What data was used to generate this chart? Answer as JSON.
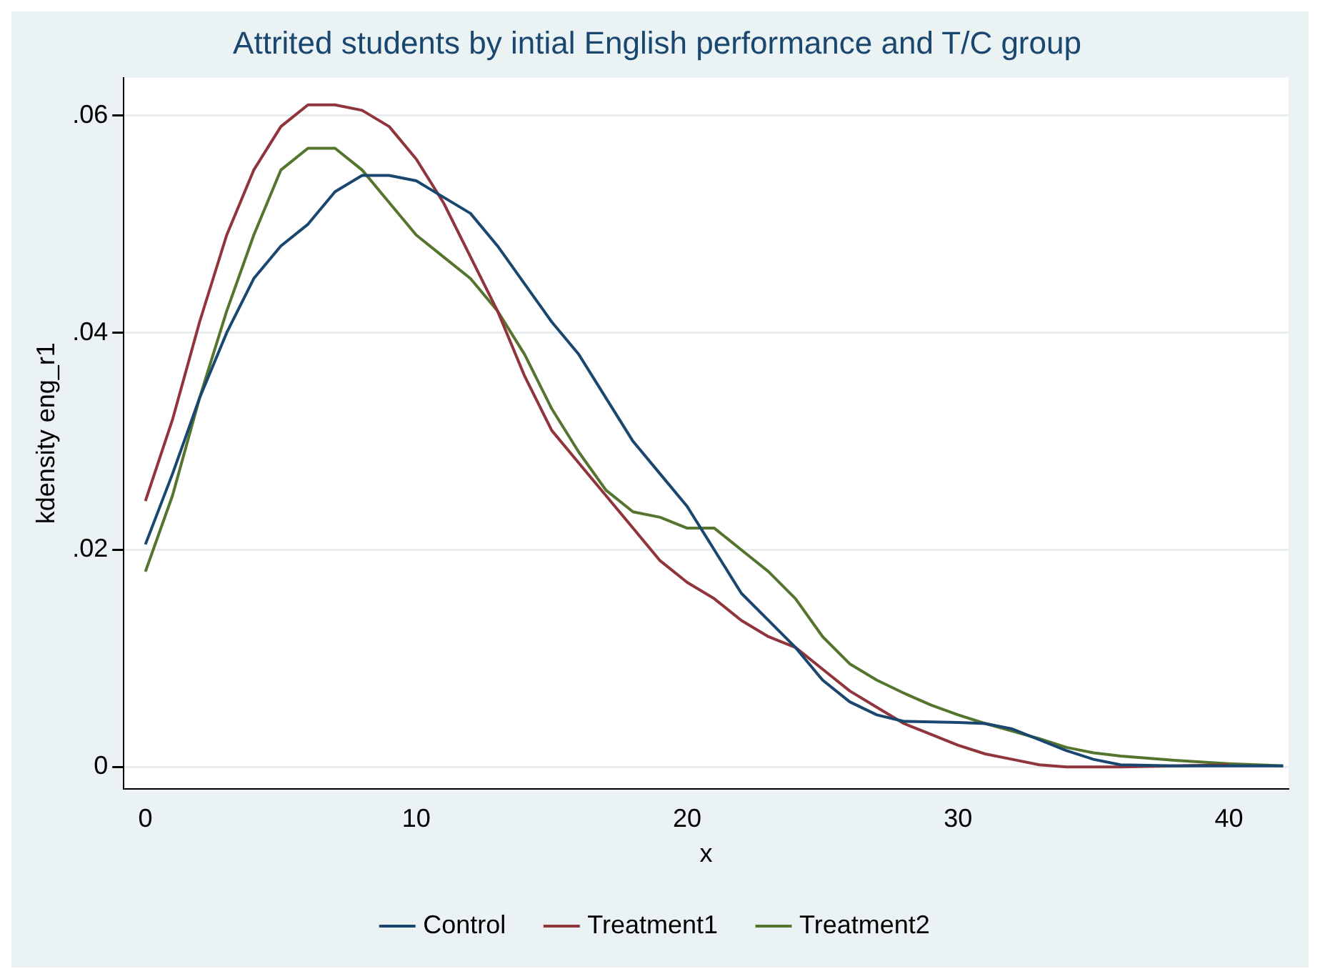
{
  "chart_data": {
    "type": "line",
    "title": "Attrited students by intial English performance and T/C group",
    "xlabel": "x",
    "ylabel": "kdensity eng_r1",
    "xlim": [
      -0.8,
      42.2
    ],
    "xticks": [
      0,
      10,
      20,
      30,
      40
    ],
    "ylim": [
      -0.002,
      0.0635
    ],
    "yticks": [
      {
        "value": 0,
        "label": "0"
      },
      {
        "value": 0.02,
        "label": ".02"
      },
      {
        "value": 0.04,
        "label": ".04"
      },
      {
        "value": 0.06,
        "label": ".06"
      }
    ],
    "grid": "y",
    "legend": "bottom",
    "marker": "none",
    "line_style": "solid",
    "series": [
      {
        "name": "Control",
        "color": "#1a476f",
        "x": [
          0,
          1,
          2,
          3,
          4,
          5,
          6,
          7,
          8,
          9,
          10,
          11,
          12,
          13,
          14,
          15,
          16,
          17,
          18,
          19,
          20,
          21,
          22,
          23,
          24,
          25,
          26,
          27,
          28,
          30,
          31,
          32,
          33,
          34,
          35,
          36,
          38,
          42
        ],
        "values": [
          0.0205,
          0.027,
          0.034,
          0.04,
          0.045,
          0.048,
          0.05,
          0.053,
          0.0545,
          0.0545,
          0.054,
          0.0525,
          0.051,
          0.048,
          0.0445,
          0.041,
          0.038,
          0.034,
          0.03,
          0.027,
          0.024,
          0.02,
          0.016,
          0.0135,
          0.011,
          0.008,
          0.006,
          0.0048,
          0.0042,
          0.0041,
          0.004,
          0.0035,
          0.0025,
          0.0015,
          0.0007,
          0.0002,
          0.0001,
          0.0001
        ]
      },
      {
        "name": "Treatment1",
        "color": "#90353b",
        "x": [
          0,
          1,
          2,
          3,
          4,
          5,
          6,
          7,
          8,
          9,
          10,
          11,
          12,
          13,
          14,
          15,
          16,
          17,
          18,
          19,
          20,
          21,
          22,
          23,
          24,
          25,
          26,
          27,
          28,
          29,
          30,
          31,
          32,
          33,
          34,
          36,
          38,
          40
        ],
        "values": [
          0.0245,
          0.032,
          0.041,
          0.049,
          0.055,
          0.059,
          0.061,
          0.061,
          0.0605,
          0.059,
          0.056,
          0.052,
          0.047,
          0.042,
          0.036,
          0.031,
          0.028,
          0.025,
          0.022,
          0.019,
          0.017,
          0.0155,
          0.0135,
          0.012,
          0.011,
          0.009,
          0.007,
          0.0055,
          0.004,
          0.003,
          0.002,
          0.0012,
          0.0007,
          0.0002,
          0,
          0,
          0.0001,
          0.0002
        ]
      },
      {
        "name": "Treatment2",
        "color": "#55752f",
        "x": [
          0,
          1,
          2,
          3,
          4,
          5,
          6,
          7,
          8,
          9,
          10,
          11,
          12,
          13,
          14,
          15,
          16,
          17,
          18,
          19,
          20,
          21,
          22,
          23,
          24,
          25,
          26,
          27,
          28,
          29,
          30,
          31,
          32,
          33,
          34,
          35,
          36,
          38,
          40,
          42
        ],
        "values": [
          0.018,
          0.025,
          0.034,
          0.042,
          0.049,
          0.055,
          0.057,
          0.057,
          0.055,
          0.052,
          0.049,
          0.047,
          0.045,
          0.042,
          0.038,
          0.033,
          0.029,
          0.0255,
          0.0235,
          0.023,
          0.022,
          0.022,
          0.02,
          0.018,
          0.0155,
          0.012,
          0.0095,
          0.008,
          0.0068,
          0.0057,
          0.0048,
          0.004,
          0.0033,
          0.0026,
          0.0018,
          0.0013,
          0.001,
          0.0006,
          0.0003,
          0.0001
        ]
      }
    ]
  }
}
